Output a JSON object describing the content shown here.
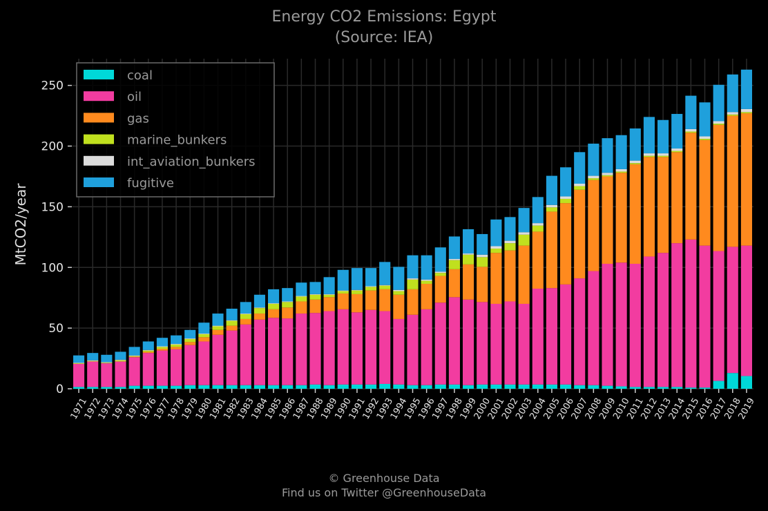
{
  "chart_data": {
    "type": "bar",
    "stacked": true,
    "title": "Energy CO2 Emissions: Egypt",
    "subtitle": "(Source: IEA)",
    "ylabel": "MtCO2/year",
    "xlabel": "",
    "ylim": [
      0,
      272
    ],
    "yticks": [
      0,
      50,
      100,
      150,
      200,
      250
    ],
    "grid": true,
    "legend_position": "top-left",
    "categories": [
      "1971",
      "1972",
      "1973",
      "1974",
      "1975",
      "1976",
      "1977",
      "1978",
      "1979",
      "1980",
      "1981",
      "1982",
      "1983",
      "1984",
      "1985",
      "1986",
      "1987",
      "1988",
      "1989",
      "1990",
      "1991",
      "1992",
      "1993",
      "1994",
      "1995",
      "1996",
      "1997",
      "1998",
      "1999",
      "2000",
      "2001",
      "2002",
      "2003",
      "2004",
      "2005",
      "2006",
      "2007",
      "2008",
      "2009",
      "2010",
      "2011",
      "2012",
      "2013",
      "2014",
      "2015",
      "2016",
      "2017",
      "2018",
      "2019"
    ],
    "series": [
      {
        "name": "coal",
        "color": "#00d8d8",
        "values": [
          1.5,
          1.5,
          1.5,
          1.5,
          2.5,
          2.5,
          2.5,
          2.5,
          3,
          3,
          3,
          3,
          3,
          3,
          3,
          3,
          3,
          3.5,
          3,
          3.5,
          3.5,
          3.5,
          4,
          3.5,
          3,
          3,
          3.5,
          3.5,
          3,
          3.5,
          3.5,
          3.5,
          3.5,
          3.5,
          3.5,
          3.5,
          3,
          3,
          2.5,
          2,
          1.5,
          1.5,
          1.5,
          1.5,
          1,
          1,
          6.5,
          13,
          10.5
        ]
      },
      {
        "name": "oil",
        "color": "#f23ca0",
        "values": [
          19,
          21,
          19.5,
          21,
          23.5,
          27,
          29,
          30,
          33,
          36,
          41.5,
          45,
          50,
          54,
          55.5,
          55,
          59,
          59,
          61,
          62,
          59.5,
          61.5,
          60,
          54,
          58,
          62.5,
          67.5,
          72,
          70.5,
          68,
          66.5,
          68.5,
          66.5,
          79,
          79.5,
          82.5,
          88,
          94,
          100.5,
          102,
          101.5,
          107.5,
          110.5,
          118.5,
          122,
          117,
          107,
          104,
          107.5
        ]
      },
      {
        "name": "gas",
        "color": "#ff8a1e",
        "values": [
          0,
          0,
          0,
          0,
          0.5,
          1,
          1.5,
          2,
          2.5,
          3.5,
          4,
          4,
          4.5,
          5,
          7,
          9,
          10,
          11,
          11.5,
          13,
          15,
          16,
          18,
          20,
          21,
          21,
          22,
          23,
          29,
          29,
          42,
          42,
          48,
          47,
          63,
          67,
          73,
          75,
          72,
          74,
          82,
          82,
          79,
          75,
          88,
          87,
          104,
          108,
          109
        ]
      },
      {
        "name": "marine_bunkers",
        "color": "#c0e01e",
        "values": [
          0.5,
          0.5,
          0.5,
          1,
          0.5,
          1,
          1.5,
          2,
          2.5,
          2.5,
          3,
          4,
          4,
          4.5,
          4.5,
          4.5,
          4,
          4,
          2,
          2,
          3,
          3,
          3,
          3,
          8,
          2.5,
          2.5,
          7.5,
          8,
          8,
          3.5,
          6,
          9,
          5,
          3.5,
          3.5,
          3,
          1.5,
          1,
          1,
          1,
          1,
          1,
          1,
          1,
          1,
          1,
          1,
          1
        ]
      },
      {
        "name": "int_aviation_bunkers",
        "color": "#dcdcdc",
        "values": [
          0.5,
          0.5,
          0.5,
          0.5,
          0.5,
          0.5,
          0.5,
          0.5,
          0.5,
          0.5,
          0.5,
          0.5,
          0.5,
          0.5,
          0.5,
          0.5,
          0.5,
          0.5,
          0.5,
          0.5,
          0.5,
          0.5,
          0.5,
          1,
          1,
          1,
          1,
          1,
          1,
          2,
          2,
          2,
          2,
          2,
          2,
          2,
          2,
          2,
          2,
          2,
          2,
          2,
          2,
          2,
          2,
          2,
          2,
          2,
          2.5
        ]
      },
      {
        "name": "fugitive",
        "color": "#1fa0dc",
        "values": [
          6,
          6,
          6,
          6.5,
          7,
          7,
          7,
          7,
          7,
          9,
          10,
          9.5,
          9.5,
          10.5,
          11.5,
          11,
          11,
          10,
          14,
          17,
          18,
          15,
          19,
          19,
          19,
          20,
          20,
          18.5,
          20,
          17,
          22,
          19.5,
          20,
          21.5,
          24,
          24,
          26,
          26.5,
          28.5,
          28,
          26.5,
          30,
          27.5,
          28.5,
          27.5,
          28,
          30,
          31,
          32.5
        ]
      }
    ]
  },
  "footer": {
    "line1": "© Greenhouse Data",
    "line2": "Find us on Twitter @GreenhouseData"
  }
}
